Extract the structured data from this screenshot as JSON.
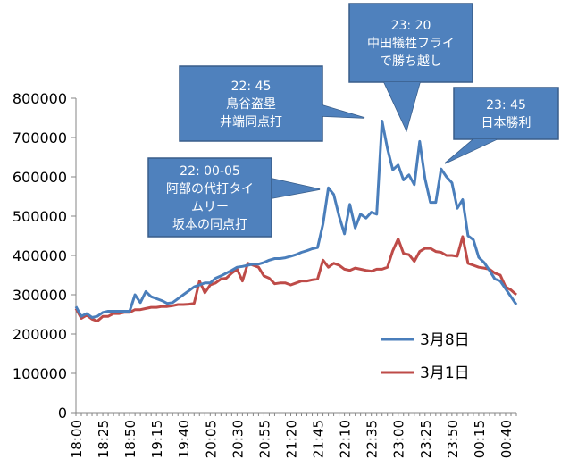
{
  "chart_data": {
    "type": "line",
    "title": "",
    "xlabel": "",
    "ylabel": "",
    "ylim": [
      0,
      800000
    ],
    "yticks": [
      "0",
      "100000",
      "200000",
      "300000",
      "400000",
      "500000",
      "600000",
      "700000",
      "800000"
    ],
    "xtick_labels": [
      "18:00",
      "18:25",
      "18:50",
      "19:15",
      "19:40",
      "20:05",
      "20:30",
      "20:55",
      "21:20",
      "21:45",
      "22:10",
      "22:35",
      "23:00",
      "23:25",
      "23:50",
      "00:15",
      "00:40"
    ],
    "x": [
      "18:00",
      "18:05",
      "18:10",
      "18:15",
      "18:20",
      "18:25",
      "18:30",
      "18:35",
      "18:40",
      "18:45",
      "18:50",
      "18:55",
      "19:00",
      "19:05",
      "19:10",
      "19:15",
      "19:20",
      "19:25",
      "19:30",
      "19:35",
      "19:40",
      "19:45",
      "19:50",
      "19:55",
      "20:00",
      "20:05",
      "20:10",
      "20:15",
      "20:20",
      "20:25",
      "20:30",
      "20:35",
      "20:40",
      "20:45",
      "20:50",
      "20:55",
      "21:00",
      "21:05",
      "21:10",
      "21:15",
      "21:20",
      "21:25",
      "21:30",
      "21:35",
      "21:40",
      "21:45",
      "21:50",
      "21:55",
      "22:00",
      "22:05",
      "22:10",
      "22:15",
      "22:20",
      "22:25",
      "22:30",
      "22:35",
      "22:40",
      "22:45",
      "22:50",
      "22:55",
      "23:00",
      "23:05",
      "23:10",
      "23:15",
      "23:20",
      "23:25",
      "23:30",
      "23:35",
      "23:40",
      "23:45",
      "23:50",
      "23:55",
      "00:00",
      "00:05",
      "00:10",
      "00:15",
      "00:20",
      "00:25",
      "00:30",
      "00:35",
      "00:40",
      "00:45",
      "00:50"
    ],
    "grid": false,
    "legend_position": "bottom-right",
    "series": [
      {
        "name": "3月8日",
        "color": "#4a7ebb",
        "values": [
          270000,
          245000,
          252000,
          242000,
          245000,
          255000,
          258000,
          258000,
          258000,
          258000,
          258000,
          300000,
          280000,
          308000,
          295000,
          290000,
          285000,
          278000,
          280000,
          290000,
          300000,
          310000,
          320000,
          325000,
          330000,
          330000,
          342000,
          348000,
          355000,
          362000,
          370000,
          372000,
          375000,
          378000,
          378000,
          382000,
          388000,
          392000,
          392000,
          394000,
          398000,
          402000,
          408000,
          412000,
          417000,
          420000,
          480000,
          572000,
          555000,
          500000,
          455000,
          530000,
          470000,
          505000,
          495000,
          510000,
          505000,
          742000,
          672000,
          618000,
          630000,
          592000,
          605000,
          580000,
          690000,
          595000,
          535000,
          535000,
          620000,
          600000,
          585000,
          520000,
          542000,
          450000,
          440000,
          395000,
          382000,
          362000,
          340000,
          335000,
          315000,
          295000,
          275000
        ]
      },
      {
        "name": "3月1日",
        "color": "#be4b48",
        "values": [
          265000,
          240000,
          248000,
          238000,
          233000,
          245000,
          245000,
          252000,
          252000,
          255000,
          255000,
          262000,
          262000,
          265000,
          268000,
          268000,
          270000,
          270000,
          272000,
          275000,
          275000,
          276000,
          278000,
          335000,
          305000,
          325000,
          330000,
          340000,
          342000,
          355000,
          365000,
          335000,
          380000,
          375000,
          370000,
          348000,
          342000,
          328000,
          330000,
          330000,
          325000,
          330000,
          335000,
          335000,
          338000,
          340000,
          388000,
          370000,
          380000,
          375000,
          365000,
          362000,
          368000,
          365000,
          362000,
          360000,
          365000,
          365000,
          370000,
          412000,
          442000,
          405000,
          402000,
          385000,
          410000,
          418000,
          418000,
          410000,
          408000,
          400000,
          400000,
          398000,
          448000,
          380000,
          375000,
          370000,
          368000,
          365000,
          355000,
          350000,
          320000,
          312000,
          300000
        ]
      }
    ],
    "callouts": [
      {
        "lines": [
          "22: 00-05",
          "阿部の代打タイ",
          "ムリー",
          "坂本の同点打"
        ]
      },
      {
        "lines": [
          "22: 45",
          "鳥谷盗塁",
          "井端同点打"
        ]
      },
      {
        "lines": [
          "23: 20",
          "中田犠牲フライ",
          "で勝ち越し"
        ]
      },
      {
        "lines": [
          "23: 45",
          "日本勝利"
        ]
      }
    ]
  }
}
